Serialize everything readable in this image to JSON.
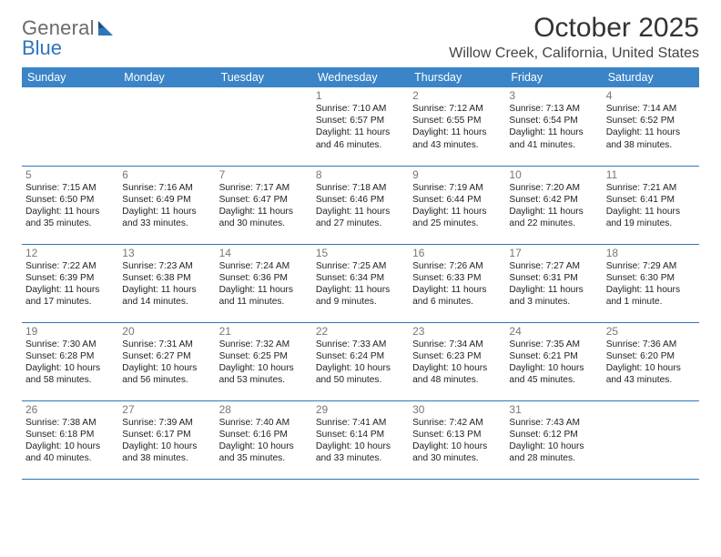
{
  "brand": {
    "general": "General",
    "blue": "Blue"
  },
  "title": "October 2025",
  "location": "Willow Creek, California, United States",
  "colors": {
    "header_bg": "#3a84c7",
    "header_text": "#ffffff",
    "rule": "#2f76b9",
    "daynum": "#777777",
    "body_text": "#222222",
    "logo_gray": "#6a6a6a",
    "logo_blue": "#2f76b9",
    "page_bg": "#ffffff"
  },
  "day_headers": [
    "Sunday",
    "Monday",
    "Tuesday",
    "Wednesday",
    "Thursday",
    "Friday",
    "Saturday"
  ],
  "weeks": [
    [
      null,
      null,
      null,
      {
        "n": "1",
        "sunrise": "7:10 AM",
        "sunset": "6:57 PM",
        "dl1": "Daylight: 11 hours",
        "dl2": "and 46 minutes."
      },
      {
        "n": "2",
        "sunrise": "7:12 AM",
        "sunset": "6:55 PM",
        "dl1": "Daylight: 11 hours",
        "dl2": "and 43 minutes."
      },
      {
        "n": "3",
        "sunrise": "7:13 AM",
        "sunset": "6:54 PM",
        "dl1": "Daylight: 11 hours",
        "dl2": "and 41 minutes."
      },
      {
        "n": "4",
        "sunrise": "7:14 AM",
        "sunset": "6:52 PM",
        "dl1": "Daylight: 11 hours",
        "dl2": "and 38 minutes."
      }
    ],
    [
      {
        "n": "5",
        "sunrise": "7:15 AM",
        "sunset": "6:50 PM",
        "dl1": "Daylight: 11 hours",
        "dl2": "and 35 minutes."
      },
      {
        "n": "6",
        "sunrise": "7:16 AM",
        "sunset": "6:49 PM",
        "dl1": "Daylight: 11 hours",
        "dl2": "and 33 minutes."
      },
      {
        "n": "7",
        "sunrise": "7:17 AM",
        "sunset": "6:47 PM",
        "dl1": "Daylight: 11 hours",
        "dl2": "and 30 minutes."
      },
      {
        "n": "8",
        "sunrise": "7:18 AM",
        "sunset": "6:46 PM",
        "dl1": "Daylight: 11 hours",
        "dl2": "and 27 minutes."
      },
      {
        "n": "9",
        "sunrise": "7:19 AM",
        "sunset": "6:44 PM",
        "dl1": "Daylight: 11 hours",
        "dl2": "and 25 minutes."
      },
      {
        "n": "10",
        "sunrise": "7:20 AM",
        "sunset": "6:42 PM",
        "dl1": "Daylight: 11 hours",
        "dl2": "and 22 minutes."
      },
      {
        "n": "11",
        "sunrise": "7:21 AM",
        "sunset": "6:41 PM",
        "dl1": "Daylight: 11 hours",
        "dl2": "and 19 minutes."
      }
    ],
    [
      {
        "n": "12",
        "sunrise": "7:22 AM",
        "sunset": "6:39 PM",
        "dl1": "Daylight: 11 hours",
        "dl2": "and 17 minutes."
      },
      {
        "n": "13",
        "sunrise": "7:23 AM",
        "sunset": "6:38 PM",
        "dl1": "Daylight: 11 hours",
        "dl2": "and 14 minutes."
      },
      {
        "n": "14",
        "sunrise": "7:24 AM",
        "sunset": "6:36 PM",
        "dl1": "Daylight: 11 hours",
        "dl2": "and 11 minutes."
      },
      {
        "n": "15",
        "sunrise": "7:25 AM",
        "sunset": "6:34 PM",
        "dl1": "Daylight: 11 hours",
        "dl2": "and 9 minutes."
      },
      {
        "n": "16",
        "sunrise": "7:26 AM",
        "sunset": "6:33 PM",
        "dl1": "Daylight: 11 hours",
        "dl2": "and 6 minutes."
      },
      {
        "n": "17",
        "sunrise": "7:27 AM",
        "sunset": "6:31 PM",
        "dl1": "Daylight: 11 hours",
        "dl2": "and 3 minutes."
      },
      {
        "n": "18",
        "sunrise": "7:29 AM",
        "sunset": "6:30 PM",
        "dl1": "Daylight: 11 hours",
        "dl2": "and 1 minute."
      }
    ],
    [
      {
        "n": "19",
        "sunrise": "7:30 AM",
        "sunset": "6:28 PM",
        "dl1": "Daylight: 10 hours",
        "dl2": "and 58 minutes."
      },
      {
        "n": "20",
        "sunrise": "7:31 AM",
        "sunset": "6:27 PM",
        "dl1": "Daylight: 10 hours",
        "dl2": "and 56 minutes."
      },
      {
        "n": "21",
        "sunrise": "7:32 AM",
        "sunset": "6:25 PM",
        "dl1": "Daylight: 10 hours",
        "dl2": "and 53 minutes."
      },
      {
        "n": "22",
        "sunrise": "7:33 AM",
        "sunset": "6:24 PM",
        "dl1": "Daylight: 10 hours",
        "dl2": "and 50 minutes."
      },
      {
        "n": "23",
        "sunrise": "7:34 AM",
        "sunset": "6:23 PM",
        "dl1": "Daylight: 10 hours",
        "dl2": "and 48 minutes."
      },
      {
        "n": "24",
        "sunrise": "7:35 AM",
        "sunset": "6:21 PM",
        "dl1": "Daylight: 10 hours",
        "dl2": "and 45 minutes."
      },
      {
        "n": "25",
        "sunrise": "7:36 AM",
        "sunset": "6:20 PM",
        "dl1": "Daylight: 10 hours",
        "dl2": "and 43 minutes."
      }
    ],
    [
      {
        "n": "26",
        "sunrise": "7:38 AM",
        "sunset": "6:18 PM",
        "dl1": "Daylight: 10 hours",
        "dl2": "and 40 minutes."
      },
      {
        "n": "27",
        "sunrise": "7:39 AM",
        "sunset": "6:17 PM",
        "dl1": "Daylight: 10 hours",
        "dl2": "and 38 minutes."
      },
      {
        "n": "28",
        "sunrise": "7:40 AM",
        "sunset": "6:16 PM",
        "dl1": "Daylight: 10 hours",
        "dl2": "and 35 minutes."
      },
      {
        "n": "29",
        "sunrise": "7:41 AM",
        "sunset": "6:14 PM",
        "dl1": "Daylight: 10 hours",
        "dl2": "and 33 minutes."
      },
      {
        "n": "30",
        "sunrise": "7:42 AM",
        "sunset": "6:13 PM",
        "dl1": "Daylight: 10 hours",
        "dl2": "and 30 minutes."
      },
      {
        "n": "31",
        "sunrise": "7:43 AM",
        "sunset": "6:12 PM",
        "dl1": "Daylight: 10 hours",
        "dl2": "and 28 minutes."
      },
      null
    ]
  ]
}
